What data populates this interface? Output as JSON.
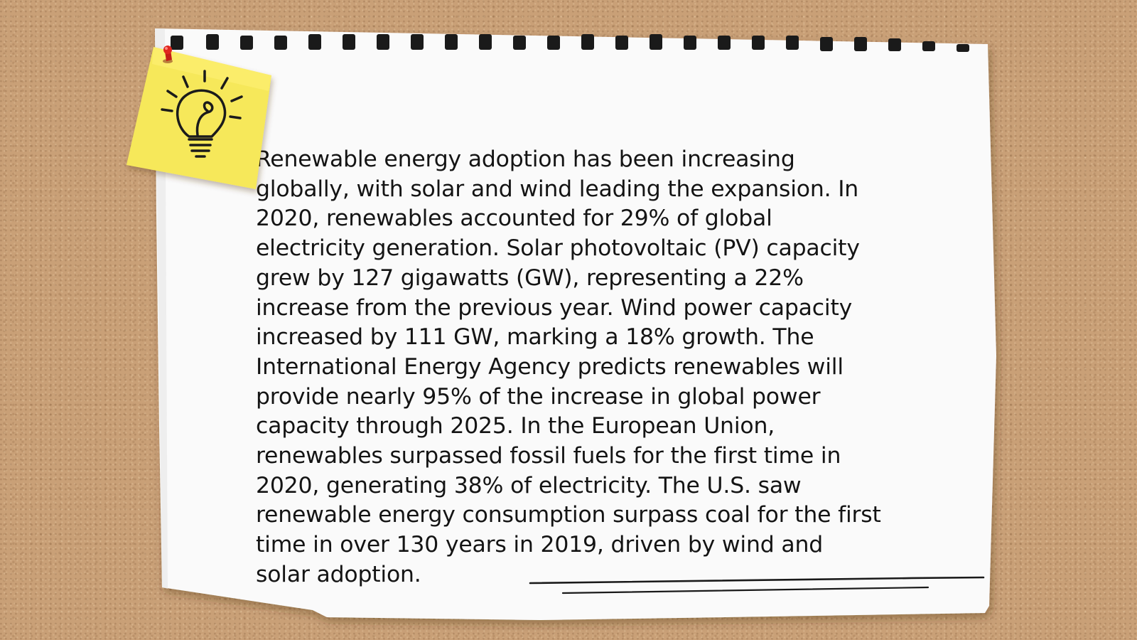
{
  "note": {
    "body": "Renewable energy adoption has been increasing globally, with solar and wind leading the expansion. In 2020, renewables accounted for 29% of global electricity generation. Solar photovoltaic (PV) capacity grew by 127 gigawatts (GW), representing a 22% increase from the previous year. Wind power capacity increased by 111 GW, marking a 18% growth. The International Energy Agency predicts renewables will provide nearly 95% of the increase in global power capacity through 2025. In the European Union, renewables surpassed fossil fuels for the first time in 2020, generating 38% of electricity. The U.S. saw renewable energy consumption surpass coal for the first time in over 130 years in 2019, driven by wind and solar adoption."
  },
  "icons": {
    "sticky_note": "lightbulb-icon",
    "pin": "pushpin-icon"
  },
  "colors": {
    "corkboard": "#c9a077",
    "paper": "#fafafa",
    "sticky_note": "#f6e85a",
    "pin": "#e0261e",
    "text": "#141414"
  }
}
